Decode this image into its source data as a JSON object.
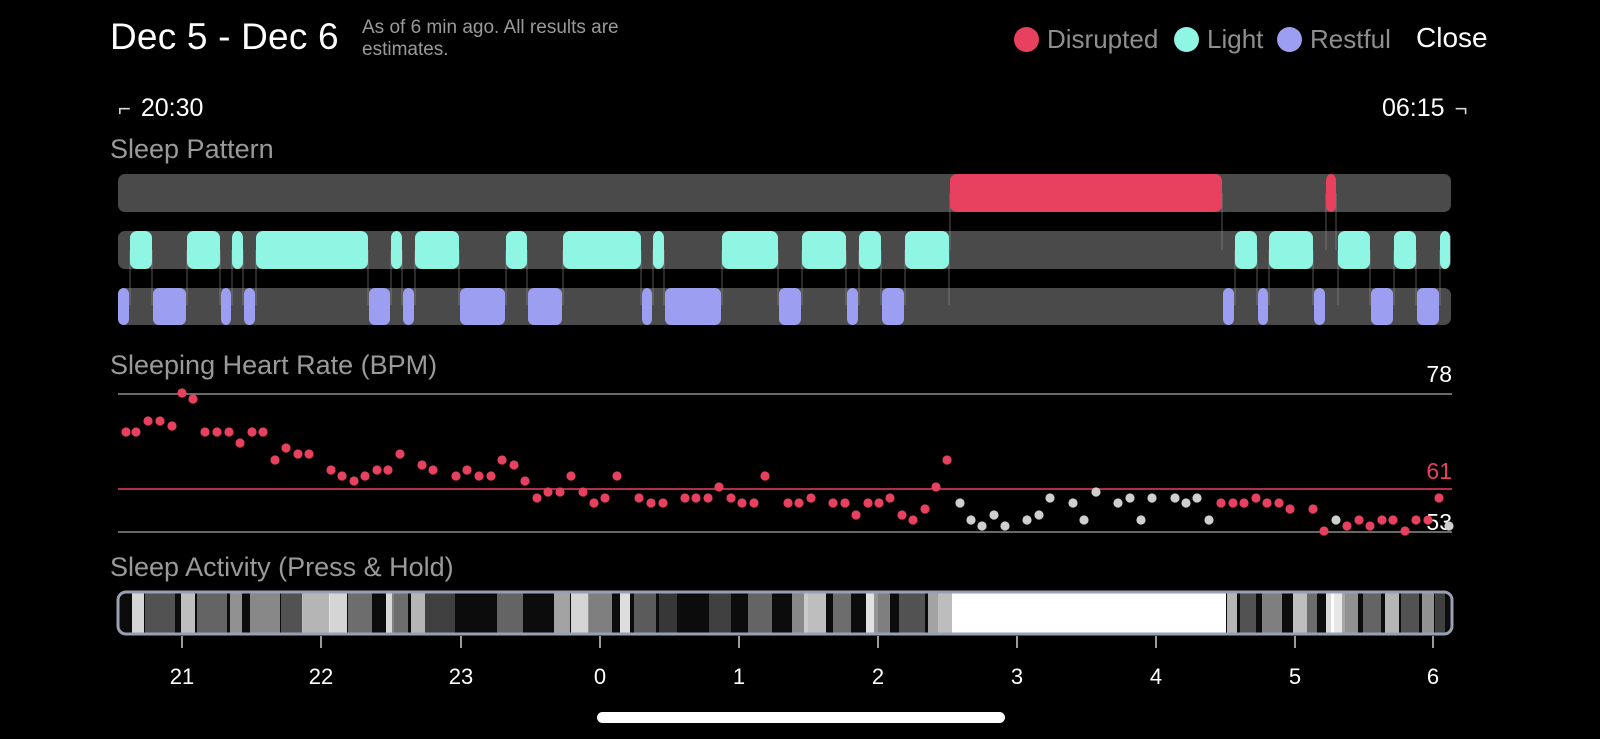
{
  "header": {
    "title": "Dec 5 - Dec 6",
    "subnote": "As of 6 min ago. All results are estimates.",
    "legend": [
      {
        "label": "Disrupted",
        "color": "#e8405f"
      },
      {
        "label": "Light",
        "color": "#8ff6e4"
      },
      {
        "label": "Restful",
        "color": "#9c9ff1"
      }
    ],
    "close_label": "Close"
  },
  "range": {
    "start": "20:30",
    "end": "06:15"
  },
  "sections": {
    "sleep_pattern": "Sleep Pattern",
    "heart_rate": "Sleeping Heart Rate (BPM)",
    "activity": "Sleep Activity (Press & Hold)"
  },
  "heart_rate": {
    "max_label": "78",
    "avg_label": "61",
    "min_label": "53"
  },
  "hour_labels": [
    "21",
    "22",
    "23",
    "0",
    "1",
    "2",
    "3",
    "4",
    "5",
    "6"
  ],
  "colors": {
    "disrupted": "#e8405f",
    "light": "#8ff6e4",
    "restful": "#9c9ff1",
    "track": "#4a4a4a",
    "hr_dot": "#e8405f",
    "hr_dot_low": "#cfcfcf"
  }
}
